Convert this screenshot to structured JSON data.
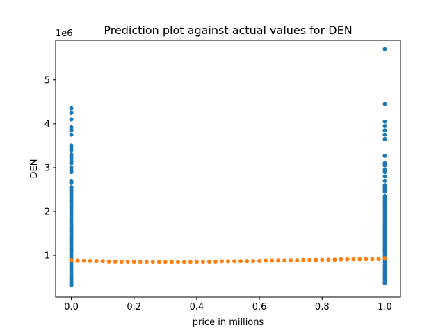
{
  "chart_data": {
    "type": "scatter",
    "title": "Prediction plot against actual values for DEN",
    "xlabel": "price in millions",
    "ylabel": "DEN",
    "y_multiplier_label": "1e6",
    "xlim": [
      -0.05,
      1.05
    ],
    "ylim": [
      50000,
      5900000
    ],
    "x_ticks": [
      0.0,
      0.2,
      0.4,
      0.6,
      0.8,
      1.0
    ],
    "x_tick_labels": [
      "0.0",
      "0.2",
      "0.4",
      "0.6",
      "0.8",
      "1.0"
    ],
    "y_ticks": [
      1000000,
      2000000,
      3000000,
      4000000,
      5000000
    ],
    "y_tick_labels": [
      "1",
      "2",
      "3",
      "4",
      "5"
    ],
    "grid": false,
    "series": [
      {
        "color": "#1f77b4",
        "points": [
          [
            0.0,
            4350000
          ],
          [
            0.0,
            4250000
          ],
          [
            0.0,
            4100000
          ],
          [
            0.0,
            3920000
          ],
          [
            0.0,
            3850000
          ],
          [
            0.0,
            3750000
          ],
          [
            0.0,
            3500000
          ],
          [
            0.0,
            3450000
          ],
          [
            0.0,
            3400000
          ],
          [
            0.0,
            3300000
          ],
          [
            0.0,
            3250000
          ],
          [
            0.0,
            3200000
          ],
          [
            0.0,
            3150000
          ],
          [
            0.0,
            3100000
          ],
          [
            0.0,
            3000000
          ],
          [
            0.0,
            2950000
          ],
          [
            0.0,
            2900000
          ],
          [
            0.0,
            2700000
          ],
          [
            0.0,
            2650000
          ],
          [
            0.0,
            2550000
          ],
          [
            0.0,
            2500000
          ],
          [
            0.0,
            2450000
          ],
          [
            0.0,
            2400000
          ],
          [
            0.0,
            2350000
          ],
          [
            0.0,
            2300000
          ],
          [
            0.0,
            2250000
          ],
          [
            0.0,
            2200000
          ],
          [
            0.0,
            2150000
          ],
          [
            0.0,
            2100000
          ],
          [
            0.0,
            2050000
          ],
          [
            0.0,
            2000000
          ],
          [
            0.0,
            1950000
          ],
          [
            0.0,
            1900000
          ],
          [
            0.0,
            1850000
          ],
          [
            0.0,
            1800000
          ],
          [
            0.0,
            1750000
          ],
          [
            0.0,
            1700000
          ],
          [
            0.0,
            1650000
          ],
          [
            0.0,
            1600000
          ],
          [
            0.0,
            1550000
          ],
          [
            0.0,
            1500000
          ],
          [
            0.0,
            1450000
          ],
          [
            0.0,
            1400000
          ],
          [
            0.0,
            1350000
          ],
          [
            0.0,
            1300000
          ],
          [
            0.0,
            1250000
          ],
          [
            0.0,
            1200000
          ],
          [
            0.0,
            1150000
          ],
          [
            0.0,
            1100000
          ],
          [
            0.0,
            1050000
          ],
          [
            0.0,
            1000000
          ],
          [
            0.0,
            950000
          ],
          [
            0.0,
            900000
          ],
          [
            0.0,
            850000
          ],
          [
            0.0,
            800000
          ],
          [
            0.0,
            750000
          ],
          [
            0.0,
            700000
          ],
          [
            0.0,
            650000
          ],
          [
            0.0,
            600000
          ],
          [
            0.0,
            550000
          ],
          [
            0.0,
            500000
          ],
          [
            0.0,
            450000
          ],
          [
            0.0,
            400000
          ],
          [
            0.0,
            350000
          ],
          [
            0.0,
            320000
          ],
          [
            1.0,
            5700000
          ],
          [
            1.0,
            4450000
          ],
          [
            1.0,
            4050000
          ],
          [
            1.0,
            3950000
          ],
          [
            1.0,
            3850000
          ],
          [
            1.0,
            3750000
          ],
          [
            1.0,
            3650000
          ],
          [
            1.0,
            3270000
          ],
          [
            1.0,
            3100000
          ],
          [
            1.0,
            3050000
          ],
          [
            1.0,
            2950000
          ],
          [
            1.0,
            2900000
          ],
          [
            1.0,
            2800000
          ],
          [
            1.0,
            2700000
          ],
          [
            1.0,
            2600000
          ],
          [
            1.0,
            2550000
          ],
          [
            1.0,
            2500000
          ],
          [
            1.0,
            2450000
          ],
          [
            1.0,
            2350000
          ],
          [
            1.0,
            2300000
          ],
          [
            1.0,
            2250000
          ],
          [
            1.0,
            2200000
          ],
          [
            1.0,
            2150000
          ],
          [
            1.0,
            2100000
          ],
          [
            1.0,
            2050000
          ],
          [
            1.0,
            2000000
          ],
          [
            1.0,
            1950000
          ],
          [
            1.0,
            1900000
          ],
          [
            1.0,
            1850000
          ],
          [
            1.0,
            1800000
          ],
          [
            1.0,
            1750000
          ],
          [
            1.0,
            1700000
          ],
          [
            1.0,
            1650000
          ],
          [
            1.0,
            1600000
          ],
          [
            1.0,
            1550000
          ],
          [
            1.0,
            1500000
          ],
          [
            1.0,
            1450000
          ],
          [
            1.0,
            1400000
          ],
          [
            1.0,
            1350000
          ],
          [
            1.0,
            1300000
          ],
          [
            1.0,
            1250000
          ],
          [
            1.0,
            1200000
          ],
          [
            1.0,
            1150000
          ],
          [
            1.0,
            1100000
          ],
          [
            1.0,
            1050000
          ],
          [
            1.0,
            1000000
          ],
          [
            1.0,
            950000
          ],
          [
            1.0,
            900000
          ],
          [
            1.0,
            850000
          ],
          [
            1.0,
            800000
          ],
          [
            1.0,
            750000
          ],
          [
            1.0,
            700000
          ],
          [
            1.0,
            650000
          ],
          [
            1.0,
            600000
          ],
          [
            1.0,
            550000
          ],
          [
            1.0,
            500000
          ],
          [
            1.0,
            450000
          ],
          [
            1.0,
            400000
          ],
          [
            1.0,
            370000
          ]
        ]
      },
      {
        "color": "#ff7f0e",
        "points": [
          [
            0.0,
            890000
          ],
          [
            0.02,
            880000
          ],
          [
            0.04,
            878000
          ],
          [
            0.06,
            876000
          ],
          [
            0.08,
            874000
          ],
          [
            0.1,
            872000
          ],
          [
            0.12,
            860000
          ],
          [
            0.14,
            858000
          ],
          [
            0.16,
            857000
          ],
          [
            0.18,
            856000
          ],
          [
            0.2,
            855000
          ],
          [
            0.22,
            855000
          ],
          [
            0.24,
            854000
          ],
          [
            0.26,
            854000
          ],
          [
            0.28,
            853000
          ],
          [
            0.3,
            853000
          ],
          [
            0.32,
            853000
          ],
          [
            0.34,
            853000
          ],
          [
            0.36,
            853000
          ],
          [
            0.38,
            854000
          ],
          [
            0.4,
            854000
          ],
          [
            0.42,
            855000
          ],
          [
            0.44,
            856000
          ],
          [
            0.46,
            858000
          ],
          [
            0.48,
            868000
          ],
          [
            0.5,
            869000
          ],
          [
            0.52,
            870000
          ],
          [
            0.54,
            871000
          ],
          [
            0.56,
            872000
          ],
          [
            0.58,
            873000
          ],
          [
            0.6,
            874000
          ],
          [
            0.62,
            884000
          ],
          [
            0.64,
            885000
          ],
          [
            0.66,
            886000
          ],
          [
            0.68,
            887000
          ],
          [
            0.7,
            888000
          ],
          [
            0.72,
            889000
          ],
          [
            0.74,
            896000
          ],
          [
            0.76,
            897000
          ],
          [
            0.78,
            898000
          ],
          [
            0.8,
            899000
          ],
          [
            0.82,
            900000
          ],
          [
            0.84,
            902000
          ],
          [
            0.86,
            910000
          ],
          [
            0.88,
            912000
          ],
          [
            0.9,
            913000
          ],
          [
            0.92,
            914000
          ],
          [
            0.94,
            915000
          ],
          [
            0.96,
            916000
          ],
          [
            0.98,
            918000
          ],
          [
            1.0,
            935000
          ]
        ]
      }
    ]
  }
}
